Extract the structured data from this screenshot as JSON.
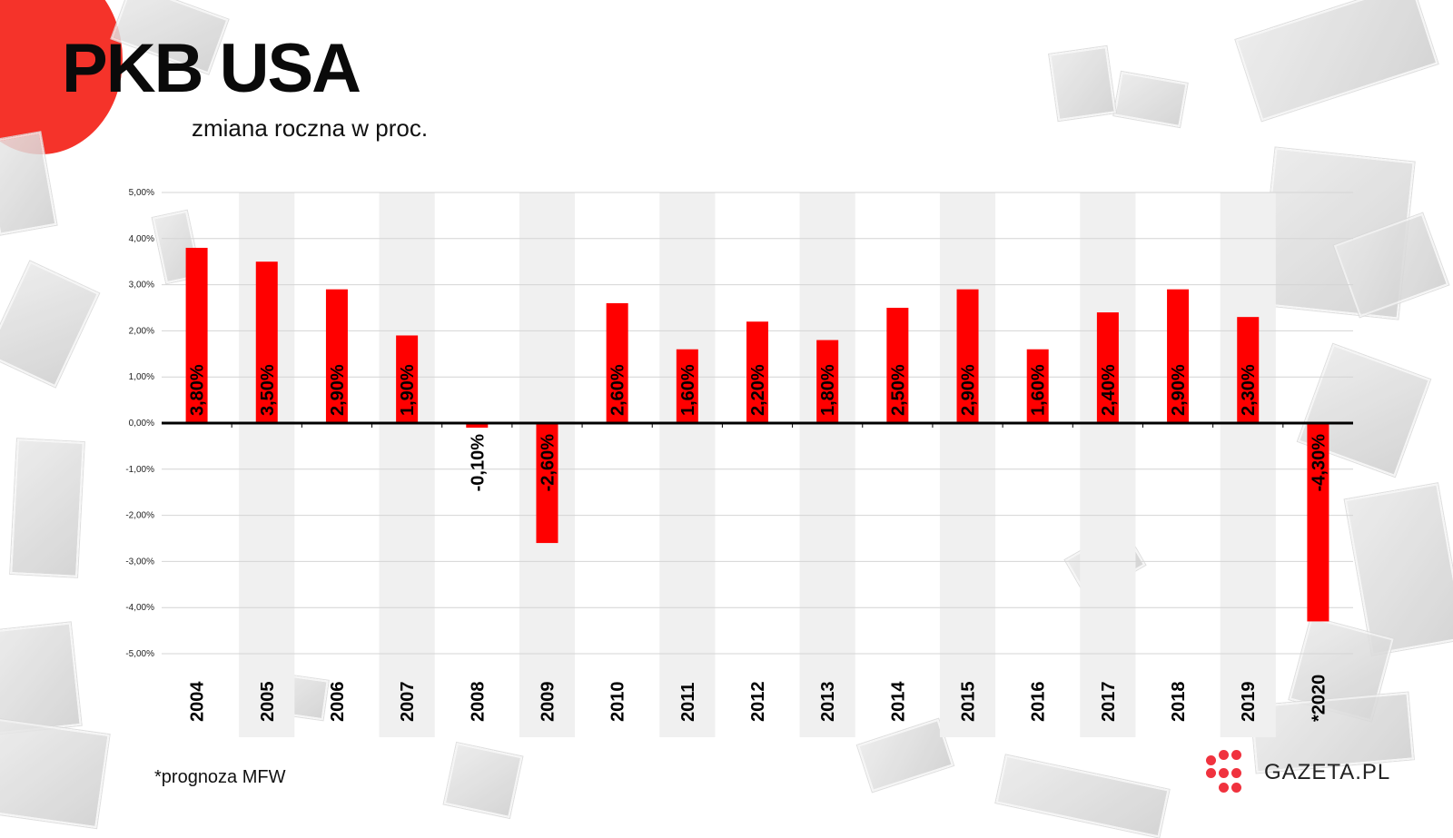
{
  "header": {
    "title": "PKB USA",
    "subtitle": "zmiana roczna w proc."
  },
  "footnote": "*prognoza MFW",
  "logo": {
    "text": "GAZETA.PL"
  },
  "colors": {
    "bar": "#ff0000",
    "band": "#f0f0f0",
    "accent": "#f5332a",
    "logo": "#f0323e"
  },
  "chart_data": {
    "type": "bar",
    "title": "PKB USA",
    "subtitle": "zmiana roczna w proc.",
    "categories": [
      "2004",
      "2005",
      "2006",
      "2007",
      "2008",
      "2009",
      "2010",
      "2011",
      "2012",
      "2013",
      "2014",
      "2015",
      "2016",
      "2017",
      "2018",
      "2019",
      "*2020"
    ],
    "values": [
      3.8,
      3.5,
      2.9,
      1.9,
      -0.1,
      -2.6,
      2.6,
      1.6,
      2.2,
      1.8,
      2.5,
      2.9,
      1.6,
      2.4,
      2.9,
      2.3,
      -4.3
    ],
    "value_labels": [
      "3,80%",
      "3,50%",
      "2,90%",
      "1,90%",
      "-0,10%",
      "-2,60%",
      "2,60%",
      "1,60%",
      "2,20%",
      "1,80%",
      "2,50%",
      "2,90%",
      "1,60%",
      "2,40%",
      "2,90%",
      "2,30%",
      "-4,30%"
    ],
    "yticks": [
      5,
      4,
      3,
      2,
      1,
      0,
      -1,
      -2,
      -3,
      -4,
      -5
    ],
    "ytick_labels": [
      "5,00%",
      "4,00%",
      "3,00%",
      "2,00%",
      "1,00%",
      "0,00%",
      "-1,00%",
      "-2,00%",
      "-3,00%",
      "-4,00%",
      "-5,00%"
    ],
    "ylim": [
      -5,
      5
    ],
    "grid": true,
    "legend": "none",
    "xlabel": "",
    "ylabel": ""
  }
}
